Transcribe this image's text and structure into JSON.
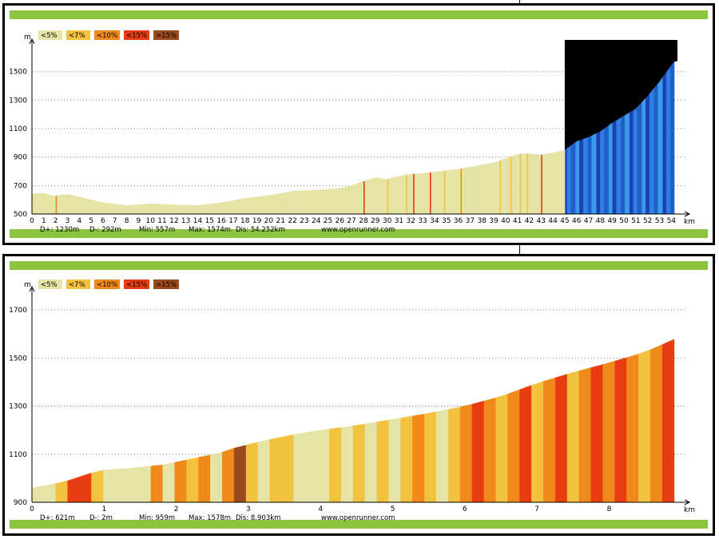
{
  "legend": [
    {
      "label": "<5%",
      "color": "#e6e3a6"
    },
    {
      "label": "<7%",
      "color": "#f2c23f"
    },
    {
      "label": "<10%",
      "color": "#ef8a1a"
    },
    {
      "label": "<15%",
      "color": "#e83c12"
    },
    {
      "label": ">15%",
      "color": "#9c4a1d"
    }
  ],
  "ylabel": "m",
  "xlabel": "km",
  "chart_data": [
    {
      "type": "area",
      "xlim": [
        0,
        54.25
      ],
      "ylim": [
        500,
        1650
      ],
      "yticks": [
        500,
        700,
        900,
        1100,
        1300,
        1500
      ],
      "xticks": [
        0,
        1,
        2,
        3,
        4,
        5,
        6,
        7,
        8,
        9,
        10,
        11,
        12,
        13,
        14,
        15,
        16,
        17,
        18,
        19,
        20,
        21,
        22,
        23,
        24,
        25,
        26,
        27,
        28,
        29,
        30,
        31,
        32,
        33,
        34,
        35,
        36,
        37,
        38,
        39,
        40,
        41,
        42,
        43,
        44,
        45,
        46,
        47,
        48,
        49,
        50,
        51,
        52,
        53,
        54
      ],
      "x": [
        0,
        1,
        1.8,
        3,
        4,
        6,
        8,
        10,
        12,
        14,
        16,
        18,
        20,
        22,
        24,
        26,
        27,
        28,
        29,
        30,
        31,
        32,
        33,
        34,
        35,
        36,
        37,
        38,
        39,
        40,
        41,
        42,
        43,
        44,
        45,
        46,
        47,
        48,
        49,
        50,
        51,
        52,
        53,
        54.25
      ],
      "y": [
        640,
        648,
        625,
        640,
        620,
        580,
        560,
        572,
        565,
        560,
        580,
        610,
        630,
        660,
        668,
        680,
        700,
        730,
        755,
        745,
        765,
        780,
        785,
        795,
        805,
        815,
        830,
        845,
        860,
        890,
        920,
        925,
        915,
        930,
        950,
        1010,
        1040,
        1080,
        1140,
        1190,
        1240,
        1330,
        1430,
        1574
      ],
      "highlight_x": [
        45,
        54.25
      ],
      "stats": {
        "d_plus": "D+: 1230m",
        "d_minus": "D-: 292m",
        "min": "Min: 557m",
        "max": "Max: 1574m",
        "dist": "Dis: 54.252km"
      },
      "credit": "www.openrunner.com"
    },
    {
      "type": "area",
      "xlim": [
        0,
        8.903
      ],
      "ylim": [
        900,
        1750
      ],
      "yticks": [
        900,
        1100,
        1300,
        1500,
        1700
      ],
      "xticks": [
        0,
        1,
        2,
        3,
        4,
        5,
        6,
        7,
        8
      ],
      "x": [
        0,
        0.2,
        0.5,
        0.8,
        1,
        1.3,
        1.8,
        2.2,
        2.6,
        2.8,
        3.2,
        3.6,
        4,
        4.4,
        5,
        5.5,
        6,
        6.5,
        7,
        7.5,
        8,
        8.5,
        8.903
      ],
      "y": [
        959,
        970,
        990,
        1020,
        1035,
        1040,
        1055,
        1080,
        1105,
        1125,
        1155,
        1180,
        1200,
        1215,
        1245,
        1270,
        1300,
        1340,
        1395,
        1440,
        1480,
        1525,
        1578
      ],
      "slope_classes": [
        0,
        0,
        1,
        3,
        3,
        1,
        0,
        0,
        0,
        0,
        2,
        0,
        2,
        1,
        2,
        0,
        2,
        4,
        1,
        0,
        1,
        1,
        0,
        0,
        0,
        1,
        0,
        1,
        0,
        1,
        0,
        1,
        2,
        1,
        0,
        1,
        2,
        3,
        2,
        1,
        2,
        3,
        1,
        2,
        3,
        1,
        2,
        3,
        2,
        3,
        2,
        1,
        2,
        3
      ],
      "stats": {
        "d_plus": "D+: 621m",
        "d_minus": "D-: 2m",
        "min": "Min: 959m",
        "max": "Max: 1578m",
        "dist": "Dis: 8.903km"
      },
      "credit": "www.openrunner.com"
    }
  ]
}
